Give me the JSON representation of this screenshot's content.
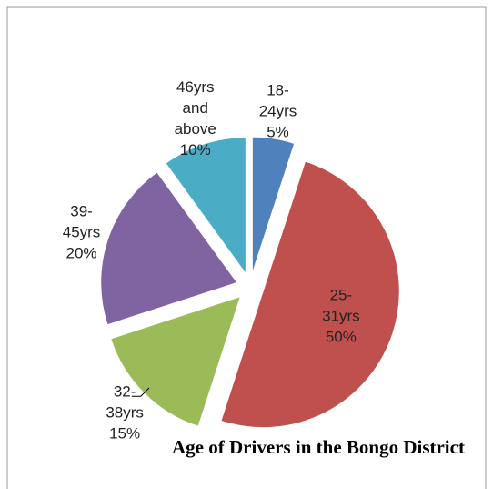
{
  "chart_data": {
    "type": "pie",
    "title": "Age of Drivers in the Bongo District",
    "categories": [
      "18-24yrs",
      "25-31yrs",
      "32-38yrs",
      "39-45yrs",
      "46yrs and above"
    ],
    "values": [
      5,
      50,
      15,
      20,
      10
    ],
    "value_labels": [
      "5%",
      "50%",
      "15%",
      "20%",
      "10%"
    ],
    "colors": [
      "#4f81bd",
      "#c0504d",
      "#9bbb59",
      "#8064a2",
      "#4bacc6"
    ],
    "exploded": true
  }
}
